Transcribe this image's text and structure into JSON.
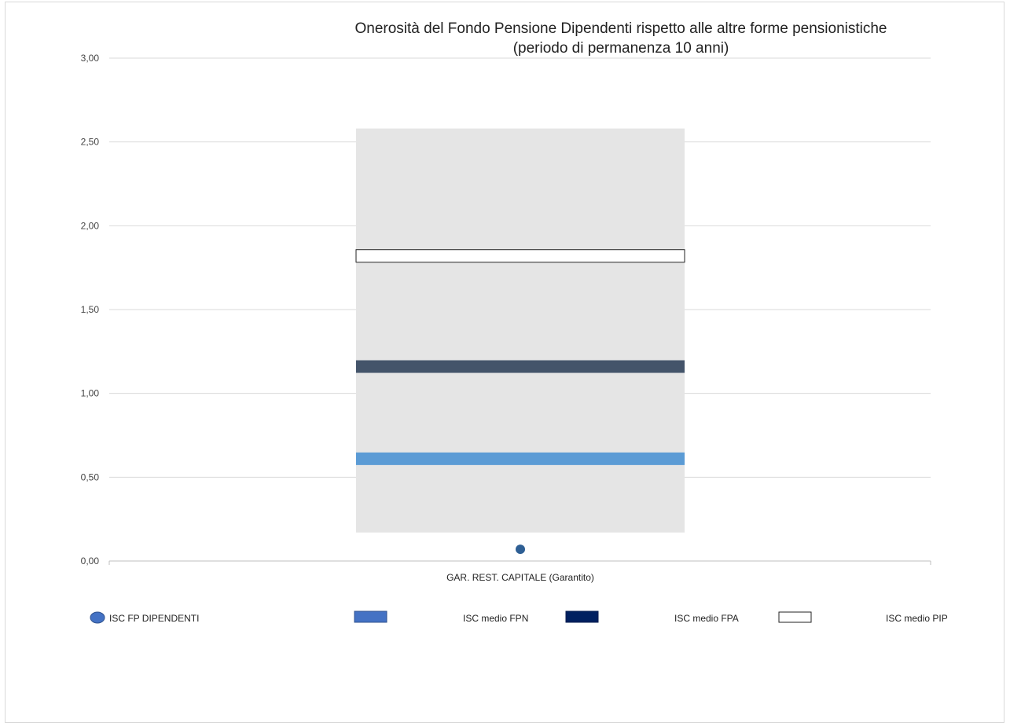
{
  "chart_data": {
    "type": "range_bar",
    "title": [
      "Onerosità del Fondo Pensione Dipendenti rispetto alle altre forme pensionistiche",
      "(periodo di permanenza 10 anni)"
    ],
    "categories": [
      "GAR. REST. CAPITALE (Garantito)"
    ],
    "ylim": [
      0,
      3
    ],
    "yticks": [
      "0,00",
      "0,50",
      "1,00",
      "1,50",
      "2,00",
      "2,50",
      "3,00"
    ],
    "ytick_values": [
      0,
      0.5,
      1,
      1.5,
      2,
      2.5,
      3
    ],
    "grid": true,
    "range": {
      "min": 0.17,
      "max": 2.58
    },
    "series": [
      {
        "name": "ISC FP DIPENDENTI",
        "type": "point",
        "values": [
          0.07
        ],
        "color": "#2e5f94"
      },
      {
        "name": "ISC medio FPN",
        "type": "band",
        "values": [
          0.61
        ],
        "color": "#5b9bd5"
      },
      {
        "name": "ISC medio FPA",
        "type": "band",
        "values": [
          1.16
        ],
        "color": "#44546a"
      },
      {
        "name": "ISC medio PIP",
        "type": "band",
        "values": [
          1.82
        ],
        "color": "#ffffff"
      }
    ],
    "legend_position": "bottom",
    "legend": [
      {
        "label": "ISC FP DIPENDENTI",
        "swatch": "circle",
        "color": "#4472c4"
      },
      {
        "label": "ISC medio FPN",
        "swatch": "rect",
        "color": "#4472c4"
      },
      {
        "label": "ISC medio FPA",
        "swatch": "rect",
        "color": "#002060"
      },
      {
        "label": "ISC medio PIP",
        "swatch": "rect",
        "color": "#ffffff"
      }
    ]
  }
}
